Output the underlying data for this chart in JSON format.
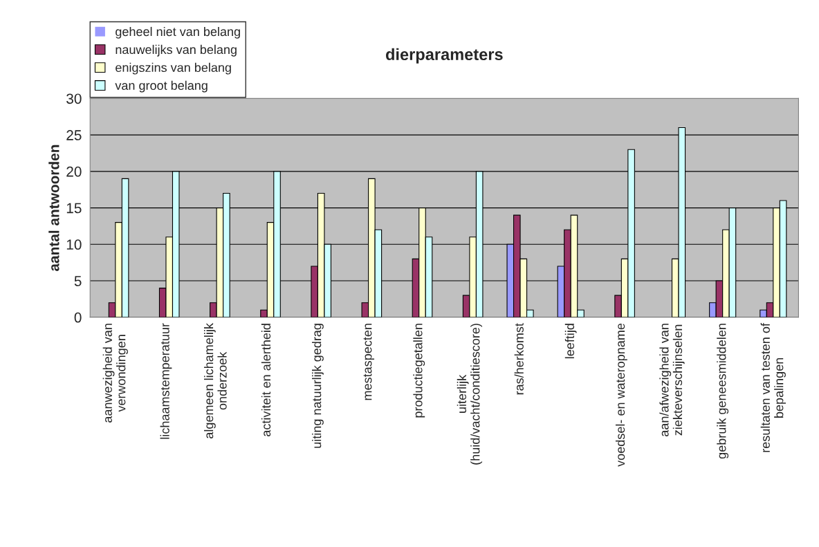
{
  "chart_data": {
    "type": "bar",
    "title": "dierparameters",
    "ylabel": "aantal antwoorden",
    "categories": [
      "aanwezigheid van\nverwondingen",
      "lichaamstemperatuur",
      "algemeen lichamelijk\nonderzoek",
      "activiteit en alertheid",
      "uiting natuurlijk gedrag",
      "mestaspecten",
      "productiegetallen",
      "uiterlijk\n(huid/vacht/conditiescore)",
      "ras/herkomst",
      "leeftijd",
      "voedsel- en wateropname",
      "aan/afwezigheid van\nziekteverschijnselen",
      "gebruik geneesmiddelen",
      "resultaten van testen of\nbepalingen"
    ],
    "series": [
      {
        "name": "geheel niet van belang",
        "color": "#9999ff",
        "values": [
          0,
          0,
          0,
          0,
          0,
          0,
          0,
          0,
          10,
          7,
          0,
          0,
          2,
          1
        ]
      },
      {
        "name": "nauwelijks van belang",
        "color": "#993366",
        "values": [
          2,
          4,
          2,
          1,
          7,
          2,
          8,
          3,
          14,
          12,
          3,
          0,
          5,
          2
        ]
      },
      {
        "name": "enigszins van belang",
        "color": "#ffffcc",
        "values": [
          13,
          11,
          15,
          13,
          17,
          19,
          15,
          11,
          8,
          14,
          8,
          8,
          12,
          15
        ]
      },
      {
        "name": "van groot belang",
        "color": "#ccffff",
        "values": [
          19,
          20,
          17,
          20,
          10,
          12,
          11,
          20,
          1,
          1,
          23,
          26,
          15,
          16
        ]
      }
    ],
    "ylim": [
      0,
      30
    ],
    "yticks": [
      0,
      5,
      10,
      15,
      20,
      25,
      30
    ],
    "grid": "y",
    "legend": "top left"
  }
}
